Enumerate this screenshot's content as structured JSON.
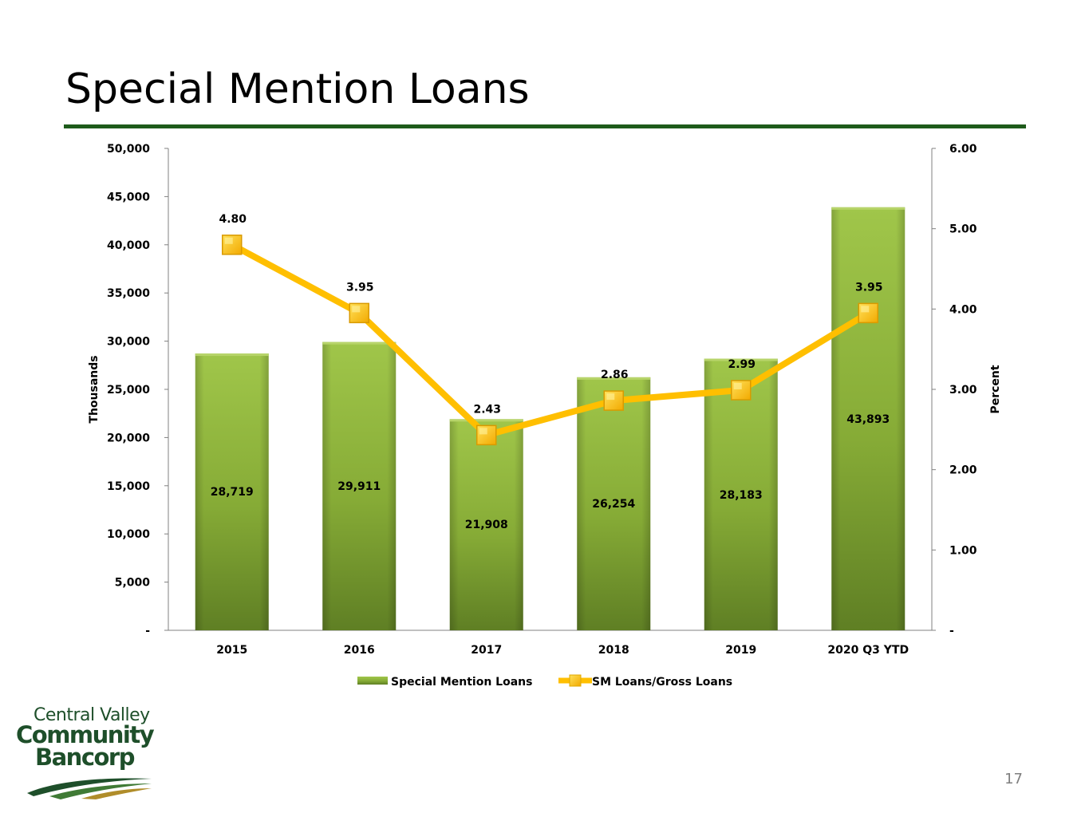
{
  "slide": {
    "title": "Special Mention Loans",
    "page_number": "17"
  },
  "logo": {
    "line1": "Central Valley",
    "line2": "Community",
    "line3": "Bancorp"
  },
  "colors": {
    "bar": "#8db33a",
    "bar_dark": "#5e7f22",
    "line": "#ffbf00",
    "marker": "#ffc000",
    "rule": "#1e5b1b",
    "axis": "#808080"
  },
  "chart_data": {
    "type": "bar",
    "categories": [
      "2015",
      "2016",
      "2017",
      "2018",
      "2019",
      "2020 Q3 YTD"
    ],
    "series": [
      {
        "name": "Special Mention Loans",
        "type": "bar",
        "axis": "left",
        "values": [
          28719,
          29911,
          21908,
          26254,
          28183,
          43893
        ],
        "labels": [
          "28,719",
          "29,911",
          "21,908",
          "26,254",
          "28,183",
          "43,893"
        ]
      },
      {
        "name": "SM Loans/Gross Loans",
        "type": "line",
        "axis": "right",
        "values": [
          4.8,
          3.95,
          2.43,
          2.86,
          2.99,
          3.95
        ],
        "labels": [
          "4.80",
          "3.95",
          "2.43",
          "2.86",
          "2.99",
          "3.95"
        ]
      }
    ],
    "ylabel": "Thousands",
    "ylim": [
      0,
      50000
    ],
    "yticks": [
      0,
      5000,
      10000,
      15000,
      20000,
      25000,
      30000,
      35000,
      40000,
      45000,
      50000
    ],
    "yticklabels": [
      "-",
      "5,000",
      "10,000",
      "15,000",
      "20,000",
      "25,000",
      "30,000",
      "35,000",
      "40,000",
      "45,000",
      "50,000"
    ],
    "y2label": "Percent",
    "y2lim": [
      0,
      6
    ],
    "y2ticks": [
      0,
      1,
      2,
      3,
      4,
      5,
      6
    ],
    "y2ticklabels": [
      "-",
      "1.00",
      "2.00",
      "3.00",
      "4.00",
      "5.00",
      "6.00"
    ],
    "grid": false,
    "legend_position": "bottom"
  }
}
